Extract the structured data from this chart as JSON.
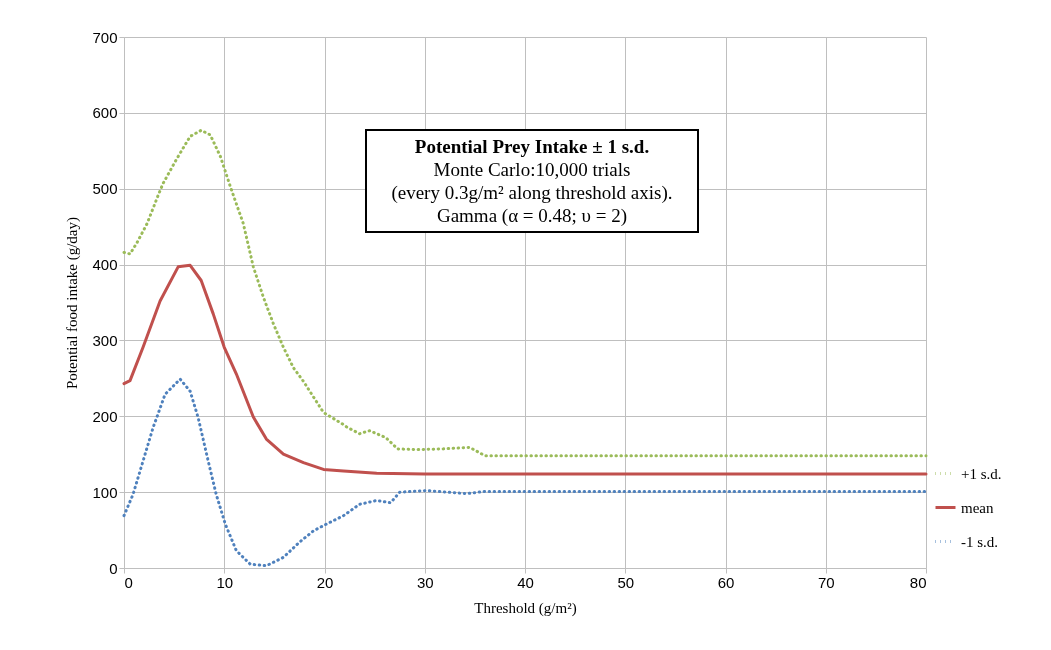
{
  "chart_data": {
    "type": "line",
    "title": "Potential Prey Intake ± 1 s.d.",
    "annotations": [
      "Monte Carlo:10,000  trials",
      "(every 0.3g/m² along threshold axis).",
      "Gamma (α = 0.48; υ = 2)"
    ],
    "xlabel": "Threshold (g/m²)",
    "ylabel": "Potential food intake (g/day)",
    "xlim": [
      0,
      80
    ],
    "xticks": [
      0,
      10,
      20,
      30,
      40,
      50,
      60,
      70,
      80
    ],
    "ylim": [
      0,
      700
    ],
    "yticks": [
      0,
      100,
      200,
      300,
      400,
      500,
      600,
      700
    ],
    "grid": true,
    "legend": "right",
    "marker": "none",
    "series": [
      {
        "name": "+1 s.d.",
        "color": "#9bbb59",
        "line_style": "dotted",
        "x": [
          0,
          0.6,
          1.3,
          2.3,
          3.4,
          3.9,
          5.2,
          6.6,
          7.7,
          8.6,
          9.6,
          10.6,
          11.9,
          12.9,
          13.9,
          14.9,
          15.9,
          16.9,
          17.9,
          19.9,
          21.9,
          22.2,
          23.5,
          24.5,
          26.1,
          27.3,
          29.2,
          31.8,
          34.5,
          36,
          40,
          50,
          60,
          70,
          80
        ],
        "values": [
          416,
          414,
          429,
          454,
          491,
          507,
          538,
          569,
          577,
          571,
          543,
          503,
          454,
          397,
          357,
          322,
          291,
          264,
          246,
          205,
          189,
          186,
          177,
          181,
          172,
          157,
          156,
          157,
          159,
          148,
          148,
          148,
          148,
          148,
          148
        ]
      },
      {
        "name": "mean",
        "color": "#c0504d",
        "line_style": "solid",
        "x": [
          0,
          0.6,
          1.9,
          3.6,
          5.4,
          6.6,
          7.7,
          8.9,
          10.0,
          11.2,
          12.9,
          14.2,
          15.9,
          17.9,
          19.9,
          21.9,
          25.2,
          30,
          40,
          50,
          60,
          70,
          80
        ],
        "values": [
          243,
          247,
          291,
          352,
          397,
          399,
          379,
          335,
          291,
          256,
          199,
          170,
          150,
          139,
          130,
          128,
          125,
          124,
          124,
          124,
          124,
          124,
          124
        ]
      },
      {
        "name": "-1 s.d.",
        "color": "#4f81bd",
        "line_style": "dotted",
        "x": [
          0,
          0.9,
          1.9,
          2.9,
          4.1,
          5.6,
          6.6,
          7.4,
          8.4,
          9.2,
          10.1,
          11.2,
          12.6,
          14.2,
          15.9,
          17.5,
          18.9,
          20.2,
          21.9,
          23.5,
          25.2,
          26.6,
          27.5,
          30.2,
          34.2,
          36,
          40,
          50,
          60,
          70,
          80
        ],
        "values": [
          69,
          97,
          141,
          185,
          229,
          249,
          233,
          198,
          141,
          97,
          58,
          23,
          5,
          3,
          14,
          34,
          49,
          58,
          69,
          84,
          89,
          86,
          100,
          102,
          98,
          101,
          101,
          101,
          101,
          101,
          101
        ]
      }
    ]
  }
}
